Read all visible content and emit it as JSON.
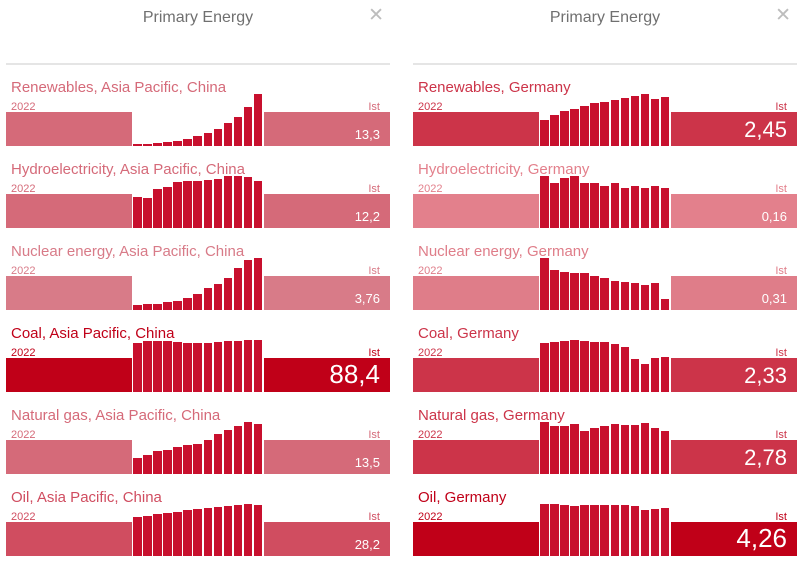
{
  "panels": [
    {
      "title": "Primary Energy",
      "close_icon": "close-icon",
      "tiles": [
        {
          "label": "Renewables, Asia Pacific, China",
          "year": "2022",
          "status": "Ist",
          "value": "13,3",
          "color": "#d56a79",
          "bar_color": "#c8102e",
          "highlight": false,
          "series": [
            0.38,
            0.51,
            0.75,
            1.02,
            1.37,
            1.9,
            2.54,
            3.34,
            4.31,
            5.86,
            7.52,
            9.99,
            13.3
          ]
        },
        {
          "label": "Hydroelectricity, Asia Pacific, China",
          "year": "2022",
          "status": "Ist",
          "value": "12,2",
          "color": "#d56a79",
          "bar_color": "#c8102e",
          "highlight": false,
          "series": [
            8.2,
            7.9,
            10.2,
            10.8,
            12.1,
            12.3,
            12.4,
            12.5,
            12.9,
            13.5,
            13.6,
            13.3,
            12.2
          ]
        },
        {
          "label": "Nuclear energy, Asia Pacific, China",
          "year": "2022",
          "status": "Ist",
          "value": "3,76",
          "color": "#d87b88",
          "bar_color": "#c8102e",
          "highlight": false,
          "series": [
            0.35,
            0.45,
            0.46,
            0.58,
            0.66,
            0.85,
            1.15,
            1.58,
            1.9,
            2.35,
            3.05,
            3.64,
            3.76
          ]
        },
        {
          "label": "Coal, Asia Pacific, China",
          "year": "2022",
          "status": "Ist",
          "value": "88,4",
          "color": "#c00018",
          "bar_color": "#c8102e",
          "highlight": true,
          "series": [
            84.0,
            86.5,
            86.8,
            86.2,
            85.7,
            84.2,
            84.0,
            84.3,
            85.2,
            86.1,
            87.5,
            88.6,
            88.4
          ]
        },
        {
          "label": "Natural gas, Asia Pacific, China",
          "year": "2022",
          "status": "Ist",
          "value": "13,5",
          "color": "#d56a79",
          "bar_color": "#c8102e",
          "highlight": false,
          "series": [
            4.2,
            5.2,
            6.1,
            6.6,
            7.3,
            7.9,
            8.2,
            9.1,
            10.9,
            11.9,
            12.9,
            14.0,
            13.5
          ]
        },
        {
          "label": "Oil, Asia Pacific, China",
          "year": "2022",
          "status": "Ist",
          "value": "28,2",
          "color": "#d04d60",
          "bar_color": "#c8102e",
          "highlight": false,
          "series": [
            21.5,
            22.4,
            23.1,
            23.9,
            24.5,
            25.3,
            26.0,
            26.5,
            27.3,
            27.9,
            28.5,
            28.9,
            28.2
          ]
        }
      ]
    },
    {
      "title": "Primary Energy",
      "close_icon": "close-icon",
      "tiles": [
        {
          "label": "Renewables, Germany",
          "year": "2022",
          "status": "Ist",
          "value": "2,45",
          "color": "#cc3449",
          "bar_color": "#c8102e",
          "highlight": false,
          "series": [
            1.3,
            1.55,
            1.75,
            1.85,
            2.0,
            2.15,
            2.2,
            2.32,
            2.4,
            2.5,
            2.6,
            2.35,
            2.45
          ]
        },
        {
          "label": "Hydroelectricity, Germany",
          "year": "2022",
          "status": "Ist",
          "value": "0,16",
          "color": "#e3808c",
          "bar_color": "#c8102e",
          "highlight": false,
          "series": [
            0.21,
            0.18,
            0.2,
            0.21,
            0.18,
            0.18,
            0.17,
            0.18,
            0.16,
            0.17,
            0.16,
            0.17,
            0.16
          ]
        },
        {
          "label": "Nuclear energy, Germany",
          "year": "2022",
          "status": "Ist",
          "value": "0,31",
          "color": "#df7d89",
          "bar_color": "#c8102e",
          "highlight": false,
          "series": [
            1.48,
            1.13,
            1.07,
            1.06,
            1.04,
            0.96,
            0.91,
            0.83,
            0.8,
            0.78,
            0.7,
            0.78,
            0.31
          ]
        },
        {
          "label": "Coal, Germany",
          "year": "2022",
          "status": "Ist",
          "value": "2,33",
          "color": "#cc3449",
          "bar_color": "#c8102e",
          "highlight": false,
          "series": [
            3.2,
            3.3,
            3.35,
            3.42,
            3.37,
            3.3,
            3.27,
            3.17,
            2.97,
            2.18,
            1.85,
            2.27,
            2.33
          ]
        },
        {
          "label": "Natural gas, Germany",
          "year": "2022",
          "status": "Ist",
          "value": "2,78",
          "color": "#cc3449",
          "bar_color": "#c8102e",
          "highlight": false,
          "series": [
            3.4,
            3.13,
            3.15,
            3.25,
            2.8,
            2.98,
            3.13,
            3.26,
            3.2,
            3.2,
            3.35,
            3.0,
            2.78
          ]
        },
        {
          "label": "Oil, Germany",
          "year": "2022",
          "status": "Ist",
          "value": "4,26",
          "color": "#c00018",
          "bar_color": "#c8102e",
          "highlight": true,
          "series": [
            4.6,
            4.56,
            4.5,
            4.45,
            4.5,
            4.5,
            4.5,
            4.53,
            4.55,
            4.4,
            4.1,
            4.15,
            4.26
          ]
        }
      ]
    }
  ]
}
